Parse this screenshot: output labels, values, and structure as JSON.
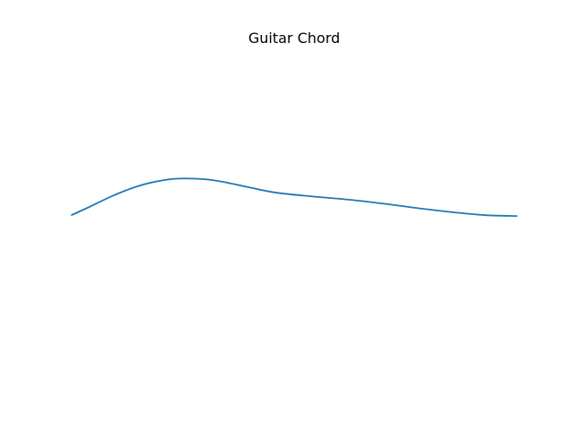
{
  "chart_data": {
    "type": "line",
    "title": "Guitar Chord",
    "xlabel": "",
    "ylabel": "",
    "axes_visible": false,
    "grid": false,
    "legend": "none",
    "xlim": [
      0,
      1
    ],
    "ylim": [
      -1,
      1
    ],
    "series": [
      {
        "color": "#1f77b4",
        "x": [
          0.0,
          0.04,
          0.1,
          0.16,
          0.22,
          0.26,
          0.3,
          0.34,
          0.4,
          0.46,
          0.54,
          0.62,
          0.7,
          0.78,
          0.86,
          0.93,
          1.0
        ],
        "y": [
          0.0,
          0.05,
          0.127,
          0.186,
          0.219,
          0.224,
          0.219,
          0.203,
          0.169,
          0.137,
          0.114,
          0.095,
          0.07,
          0.041,
          0.016,
          -0.001,
          -0.006
        ]
      }
    ]
  }
}
